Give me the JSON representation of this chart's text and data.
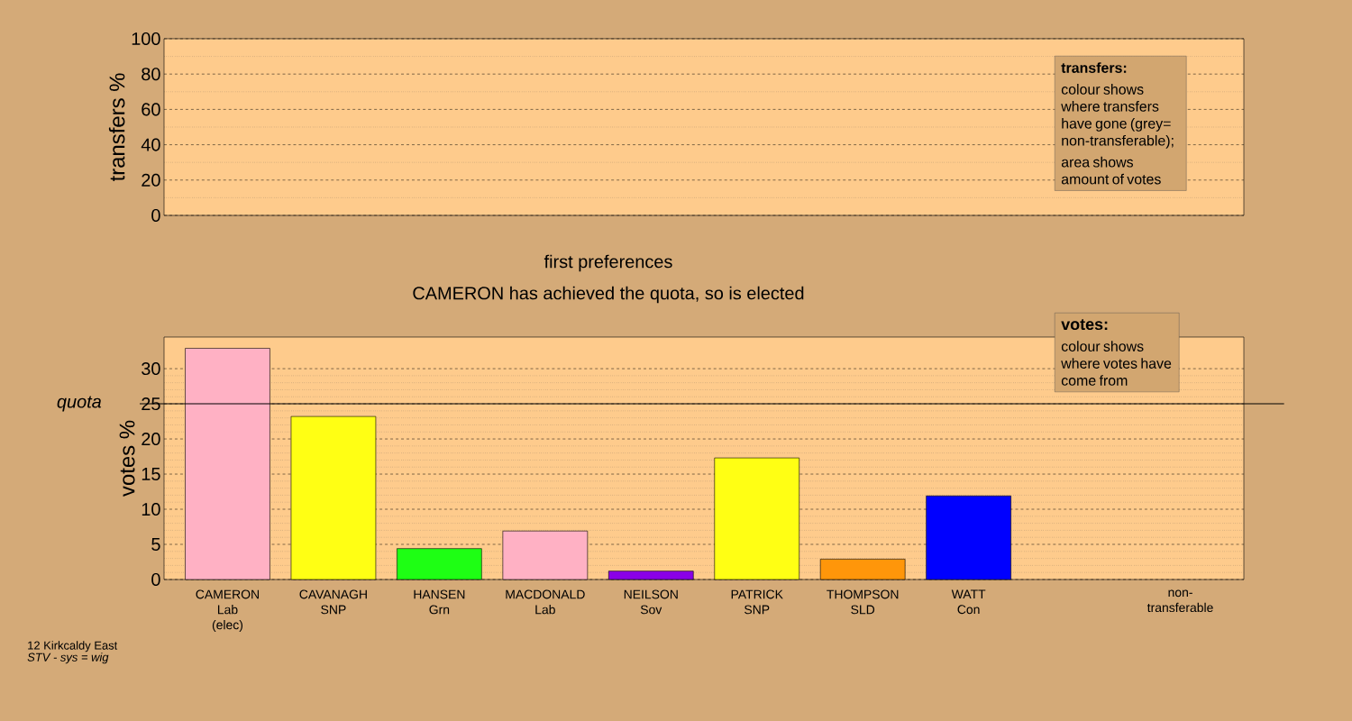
{
  "chart_data": [
    {
      "type": "bar",
      "ylabel": "transfers %",
      "categories": [
        null,
        null,
        null,
        null,
        null,
        null,
        null,
        null,
        null,
        null
      ],
      "values": [
        null,
        null,
        null,
        null,
        null,
        null,
        null,
        null,
        null,
        null
      ],
      "ylim": [
        0,
        100
      ],
      "yticks": [
        0,
        20,
        40,
        60,
        80,
        100
      ],
      "grid": "y",
      "tick_labels": "y",
      "annotations": [
        "transfers:",
        "colour shows where transfers have gone (grey= non-transferable);",
        "area shows amount of votes"
      ]
    },
    {
      "type": "bar",
      "title": "first preferences",
      "subtitle": "CAMERON has achieved the quota, so is elected",
      "ylabel": "votes %",
      "categories": [
        "CAMERON\nLab\n(elec)",
        "CAVANAGH\nSNP",
        "HANSEN\nGrn",
        "MACDONALD\nLab",
        "NEILSON\nSov",
        "PATRICK\nSNP",
        "THOMPSON\nSLD",
        "WATT\nCon",
        null,
        "non-\ntransferable"
      ],
      "values": [
        32.9,
        23.2,
        4.4,
        6.9,
        1.2,
        17.3,
        2.9,
        11.9,
        null,
        null
      ],
      "colors": [
        "#ffb1c4",
        "#ffff14",
        "#1eff14",
        "#ffb1c4",
        "#8a00e6",
        "#ffff14",
        "#ff960a",
        "#0000ff",
        "#000000",
        "#000000"
      ],
      "ylim": [
        0,
        34.5
      ],
      "yticks": [
        0,
        5,
        10,
        15,
        20,
        25,
        30
      ],
      "grid": "y",
      "ref_lines": [
        {
          "axis": "y",
          "value": 25,
          "label": "quota"
        }
      ],
      "annotations": [
        "votes:",
        "colour shows where votes have come from",
        "12 Kirkcaldy East",
        "STV - sys = wig"
      ]
    }
  ]
}
